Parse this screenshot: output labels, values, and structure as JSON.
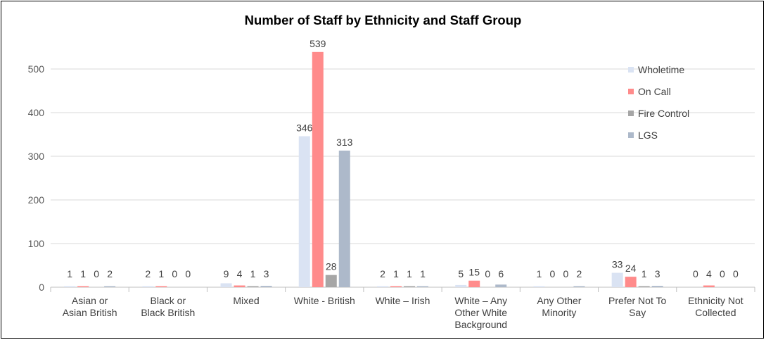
{
  "chart_data": {
    "type": "bar",
    "title": "Number of Staff by Ethnicity and Staff Group",
    "xlabel": "",
    "ylabel": "",
    "ylim": [
      0,
      600
    ],
    "yticks": [
      0,
      100,
      200,
      300,
      400,
      500
    ],
    "grid": true,
    "legend_position": "top-right",
    "categories": [
      [
        "Asian or",
        "Asian British"
      ],
      [
        "Black or",
        "Black British"
      ],
      [
        "Mixed"
      ],
      [
        "White - British"
      ],
      [
        "White – Irish"
      ],
      [
        "White – Any",
        "Other White",
        "Background"
      ],
      [
        "Any Other",
        "Minority"
      ],
      [
        "Prefer Not To",
        "Say"
      ],
      [
        "Ethnicity Not",
        "Collected"
      ]
    ],
    "series": [
      {
        "name": "Wholetime",
        "color": "#dae3f3",
        "values": [
          1,
          2,
          9,
          346,
          2,
          5,
          1,
          33,
          0
        ]
      },
      {
        "name": "On Call",
        "color": "#ff8b8b",
        "values": [
          1,
          1,
          4,
          539,
          1,
          15,
          0,
          24,
          4
        ]
      },
      {
        "name": "Fire Control",
        "color": "#a6a6a6",
        "values": [
          0,
          0,
          1,
          28,
          1,
          0,
          0,
          1,
          0
        ]
      },
      {
        "name": "LGS",
        "color": "#adb9ca",
        "values": [
          2,
          0,
          3,
          313,
          1,
          6,
          2,
          3,
          0
        ]
      }
    ]
  }
}
